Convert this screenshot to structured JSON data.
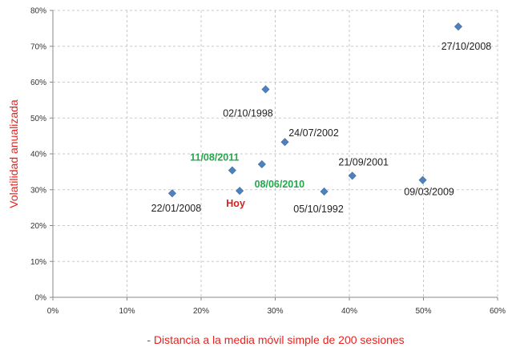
{
  "chart_data": {
    "type": "scatter",
    "title": "",
    "xlabel": "- Distancia a la media móvil simple de 200 sesiones",
    "ylabel": "Volatilidad anualizada",
    "xlim": [
      0,
      60
    ],
    "ylim": [
      0,
      80
    ],
    "x_ticks": [
      "0%",
      "10%",
      "20%",
      "30%",
      "40%",
      "50%",
      "60%"
    ],
    "y_ticks": [
      "0%",
      "10%",
      "20%",
      "30%",
      "40%",
      "50%",
      "60%",
      "70%",
      "80%"
    ],
    "grid": true,
    "marker_color": "#4f81bd",
    "points": [
      {
        "label": "27/10/2008",
        "x": 54.7,
        "y": 75.5,
        "color": "default"
      },
      {
        "label": "02/10/1998",
        "x": 28.7,
        "y": 58.0,
        "color": "default"
      },
      {
        "label": "24/07/2002",
        "x": 31.3,
        "y": 43.3,
        "color": "default"
      },
      {
        "label": "11/08/2011",
        "x": 24.2,
        "y": 35.4,
        "color": "green"
      },
      {
        "label": "08/06/2010",
        "x": 28.2,
        "y": 37.1,
        "color": "green"
      },
      {
        "label": "21/09/2001",
        "x": 40.4,
        "y": 33.9,
        "color": "default"
      },
      {
        "label": "09/03/2009",
        "x": 49.9,
        "y": 32.7,
        "color": "default"
      },
      {
        "label": "Hoy",
        "x": 25.2,
        "y": 29.7,
        "color": "red"
      },
      {
        "label": "22/01/2008",
        "x": 16.1,
        "y": 29.0,
        "color": "default"
      },
      {
        "label": "05/10/1992",
        "x": 36.6,
        "y": 29.5,
        "color": "default"
      }
    ]
  }
}
